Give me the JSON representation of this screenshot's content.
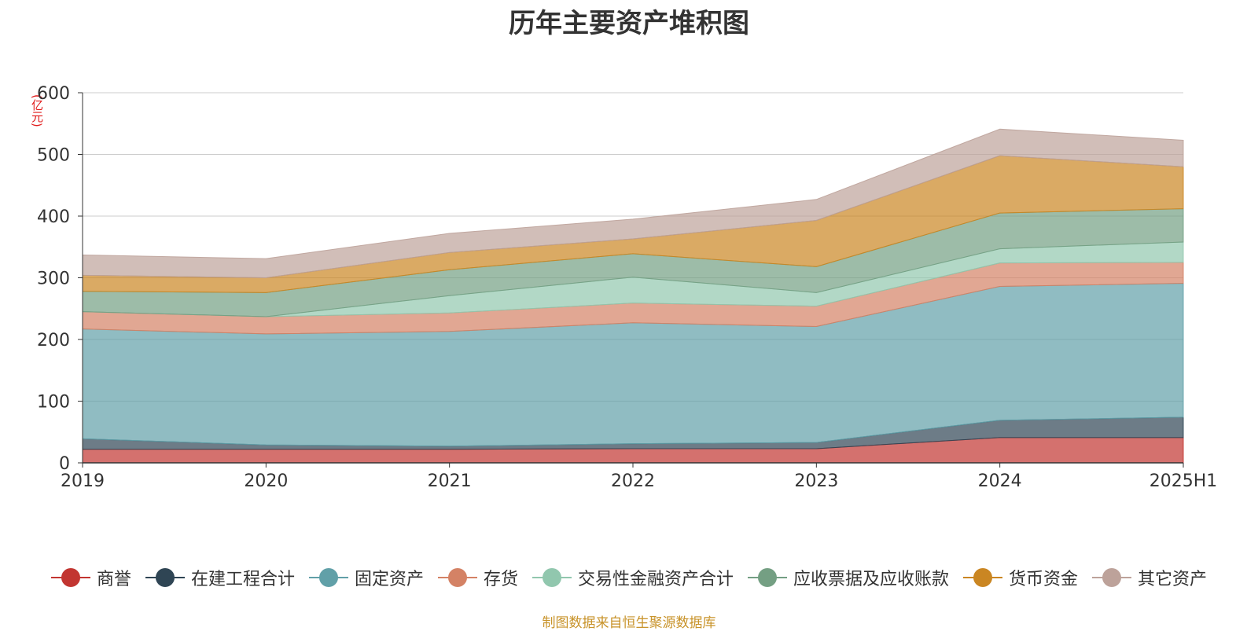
{
  "chart_data": {
    "type": "area",
    "stacked": true,
    "title": "历年主要资产堆积图",
    "unit": "(亿元)",
    "categories": [
      "2019",
      "2020",
      "2021",
      "2022",
      "2023",
      "2024",
      "2025H1"
    ],
    "ylim": [
      0,
      600
    ],
    "yticks": [
      0,
      100,
      200,
      300,
      400,
      500,
      600
    ],
    "grid": true,
    "legend_position": "bottom",
    "series": [
      {
        "name": "商誉",
        "color": "#c23531",
        "values": [
          22,
          22,
          22,
          23,
          23,
          41,
          41
        ]
      },
      {
        "name": "在建工程合计",
        "color": "#2f4554",
        "values": [
          17,
          7,
          5,
          8,
          10,
          28,
          33
        ]
      },
      {
        "name": "固定资产",
        "color": "#61a0a8",
        "values": [
          178,
          180,
          186,
          196,
          188,
          217,
          217
        ]
      },
      {
        "name": "存货",
        "color": "#d48265",
        "values": [
          28,
          28,
          30,
          32,
          33,
          38,
          34
        ]
      },
      {
        "name": "交易性金融资产合计",
        "color": "#91c7ae",
        "values": [
          0,
          0,
          28,
          42,
          22,
          23,
          33
        ]
      },
      {
        "name": "应收票据及应收账款",
        "color": "#749f83",
        "values": [
          33,
          39,
          42,
          38,
          42,
          58,
          54
        ]
      },
      {
        "name": "货币资金",
        "color": "#ca8622",
        "values": [
          26,
          24,
          28,
          24,
          75,
          93,
          68
        ]
      },
      {
        "name": "其它资产",
        "color": "#bda29a",
        "values": [
          33,
          31,
          31,
          32,
          34,
          43,
          43
        ]
      }
    ]
  },
  "source_note": "制图数据来自恒生聚源数据库"
}
